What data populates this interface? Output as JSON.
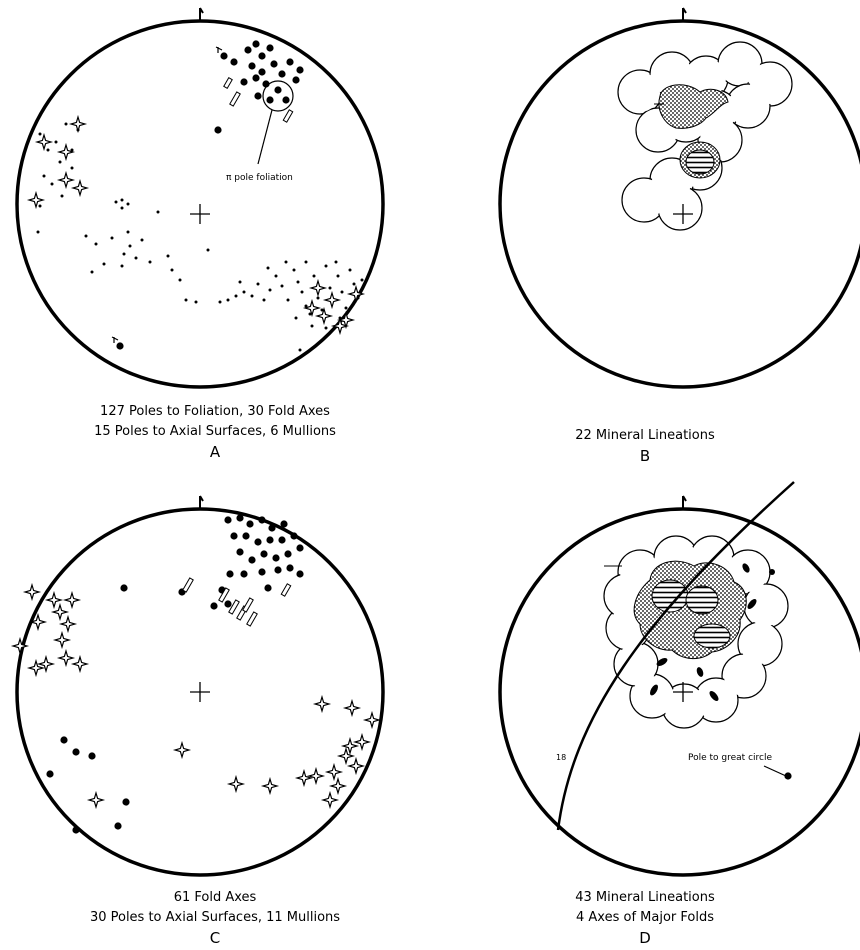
{
  "diagrams": [
    {
      "id": "A",
      "letter": "A",
      "caption_lines": [
        "127 Poles to Foliation, 30 Fold Axes",
        "15 Poles to Axial Surfaces, 6 Mullions"
      ],
      "annotation": "π pole foliation"
    },
    {
      "id": "B",
      "letter": "B",
      "caption_lines": [
        "22 Mineral Lineations"
      ]
    },
    {
      "id": "C",
      "letter": "C",
      "caption_lines": [
        "61 Fold Axes",
        "30 Poles to Axial Surfaces, 11 Mullions"
      ]
    },
    {
      "id": "D",
      "letter": "D",
      "caption_lines": [
        "43 Mineral Lineations",
        "4 Axes of Major Folds"
      ],
      "annotation": "Pole to great circle",
      "plunge_label": "18"
    }
  ],
  "legend_symbols": {
    "pole_to_foliation": "small-dot",
    "fold_axis": "filled-circle",
    "pole_to_axial_surface": "four-point-star",
    "mullion": "open-rectangle"
  }
}
